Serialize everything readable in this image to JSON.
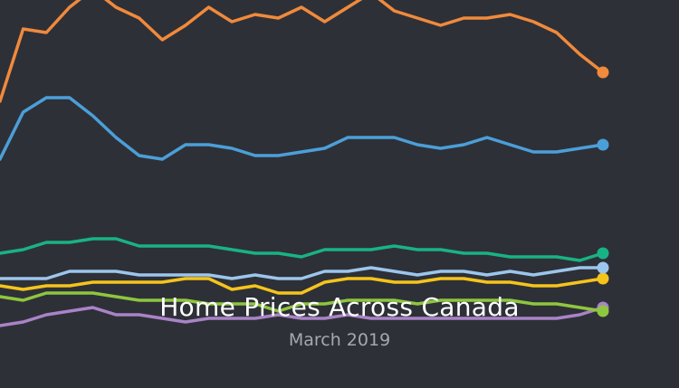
{
  "chart_data": {
    "type": "line",
    "title": "Home Prices Across Canada",
    "subtitle": "March 2019",
    "x": [
      0,
      1,
      2,
      3,
      4,
      5,
      6,
      7,
      8,
      9,
      10,
      11,
      12,
      13,
      14,
      15,
      16,
      17,
      18,
      19,
      20,
      21,
      22,
      23,
      24,
      25,
      26
    ],
    "ylim": [
      0,
      100
    ],
    "xlabel": "",
    "ylabel": "",
    "grid": false,
    "legend": "none",
    "series": [
      {
        "color": "#f08a3c",
        "values": [
          72,
          92,
          91,
          98,
          103,
          98,
          95,
          89,
          93,
          98,
          94,
          96,
          95,
          98,
          94,
          98,
          102,
          97,
          95,
          93,
          95,
          95,
          96,
          94,
          91,
          85,
          80
        ]
      },
      {
        "color": "#4b9fd8",
        "values": [
          56,
          69,
          73,
          73,
          68,
          62,
          57,
          56,
          60,
          60,
          59,
          57,
          57,
          58,
          59,
          62,
          62,
          62,
          60,
          59,
          60,
          62,
          60,
          58,
          58,
          59,
          60
        ]
      },
      {
        "color": "#18b384",
        "values": [
          30,
          31,
          33,
          33,
          34,
          34,
          32,
          32,
          32,
          32,
          31,
          30,
          30,
          29,
          31,
          31,
          31,
          32,
          31,
          31,
          30,
          30,
          29,
          29,
          29,
          28,
          30
        ]
      },
      {
        "color": "#9cc6ec",
        "values": [
          23,
          23,
          23,
          25,
          25,
          25,
          24,
          24,
          24,
          24,
          23,
          24,
          23,
          23,
          25,
          25,
          26,
          25,
          24,
          25,
          25,
          24,
          25,
          24,
          25,
          26,
          26
        ]
      },
      {
        "color": "#f5c41c",
        "values": [
          21,
          20,
          21,
          21,
          22,
          22,
          22,
          22,
          23,
          23,
          20,
          21,
          19,
          19,
          22,
          23,
          23,
          22,
          22,
          23,
          23,
          22,
          22,
          21,
          21,
          22,
          23
        ]
      },
      {
        "color": "#8ec63f",
        "values": [
          18,
          17,
          19,
          19,
          19,
          18,
          17,
          17,
          17,
          16,
          16,
          16,
          14,
          16,
          16,
          17,
          17,
          17,
          16,
          17,
          17,
          17,
          17,
          16,
          16,
          15,
          14
        ]
      },
      {
        "color": "#a983c7",
        "values": [
          10,
          11,
          13,
          14,
          15,
          13,
          13,
          12,
          11,
          12,
          12,
          12,
          13,
          12,
          12,
          13,
          12,
          12,
          12,
          12,
          12,
          12,
          12,
          12,
          12,
          13,
          15
        ]
      }
    ]
  }
}
